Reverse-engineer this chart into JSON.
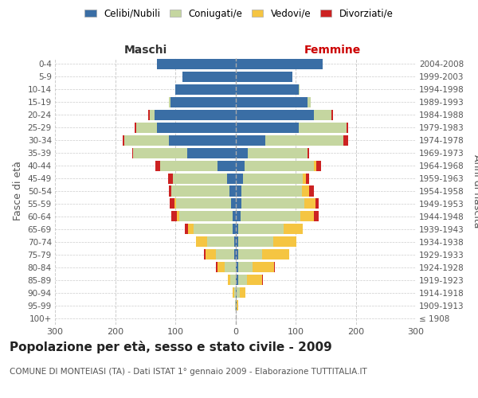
{
  "age_groups": [
    "100+",
    "95-99",
    "90-94",
    "85-89",
    "80-84",
    "75-79",
    "70-74",
    "65-69",
    "60-64",
    "55-59",
    "50-54",
    "45-49",
    "40-44",
    "35-39",
    "30-34",
    "25-29",
    "20-24",
    "15-19",
    "10-14",
    "5-9",
    "0-4"
  ],
  "birth_years": [
    "≤ 1908",
    "1909-1913",
    "1914-1918",
    "1919-1923",
    "1924-1928",
    "1929-1933",
    "1934-1938",
    "1939-1943",
    "1944-1948",
    "1949-1953",
    "1954-1958",
    "1959-1963",
    "1964-1968",
    "1969-1973",
    "1974-1978",
    "1979-1983",
    "1984-1988",
    "1989-1993",
    "1994-1998",
    "1999-2003",
    "2004-2008"
  ],
  "male_celibe": [
    0,
    0,
    0,
    0,
    0,
    2,
    2,
    4,
    5,
    7,
    10,
    14,
    30,
    80,
    110,
    130,
    135,
    108,
    100,
    88,
    130
  ],
  "male_coniugato": [
    0,
    1,
    2,
    8,
    18,
    30,
    45,
    65,
    88,
    92,
    96,
    90,
    95,
    90,
    75,
    35,
    8,
    2,
    0,
    0,
    0
  ],
  "male_vedovo": [
    0,
    0,
    2,
    5,
    12,
    18,
    18,
    10,
    5,
    2,
    0,
    0,
    0,
    0,
    0,
    0,
    0,
    0,
    0,
    0,
    0
  ],
  "male_divorziato": [
    0,
    0,
    0,
    0,
    2,
    2,
    0,
    5,
    8,
    8,
    5,
    8,
    8,
    2,
    2,
    2,
    2,
    0,
    0,
    0,
    0
  ],
  "female_nubile": [
    0,
    2,
    2,
    4,
    4,
    5,
    5,
    5,
    8,
    10,
    10,
    12,
    15,
    20,
    50,
    105,
    130,
    120,
    105,
    95,
    145
  ],
  "female_coniugata": [
    0,
    0,
    5,
    15,
    25,
    40,
    58,
    75,
    100,
    105,
    100,
    100,
    115,
    100,
    130,
    80,
    30,
    5,
    2,
    0,
    0
  ],
  "female_vedova": [
    0,
    2,
    10,
    25,
    35,
    45,
    38,
    32,
    22,
    18,
    12,
    5,
    5,
    0,
    0,
    0,
    0,
    0,
    0,
    0,
    0
  ],
  "female_divorziata": [
    0,
    0,
    0,
    2,
    2,
    0,
    0,
    0,
    8,
    5,
    8,
    5,
    8,
    2,
    8,
    2,
    2,
    0,
    0,
    0,
    0
  ],
  "color_celibe": "#3A6EA5",
  "color_coniugato": "#C5D6A0",
  "color_vedovo": "#F5C542",
  "color_divorziato": "#CC2222",
  "legend_labels": [
    "Celibi/Nubili",
    "Coniugati/e",
    "Vedovi/e",
    "Divorziati/e"
  ],
  "xlim": 300,
  "title": "Popolazione per età, sesso e stato civile - 2009",
  "subtitle": "COMUNE DI MONTEIASI (TA) - Dati ISTAT 1° gennaio 2009 - Elaborazione TUTTITALIA.IT",
  "ylabel_left": "Fasce di età",
  "ylabel_right": "Anni di nascita",
  "label_maschi": "Maschi",
  "label_femmine": "Femmine",
  "bg_color": "#ffffff",
  "grid_color": "#cccccc"
}
